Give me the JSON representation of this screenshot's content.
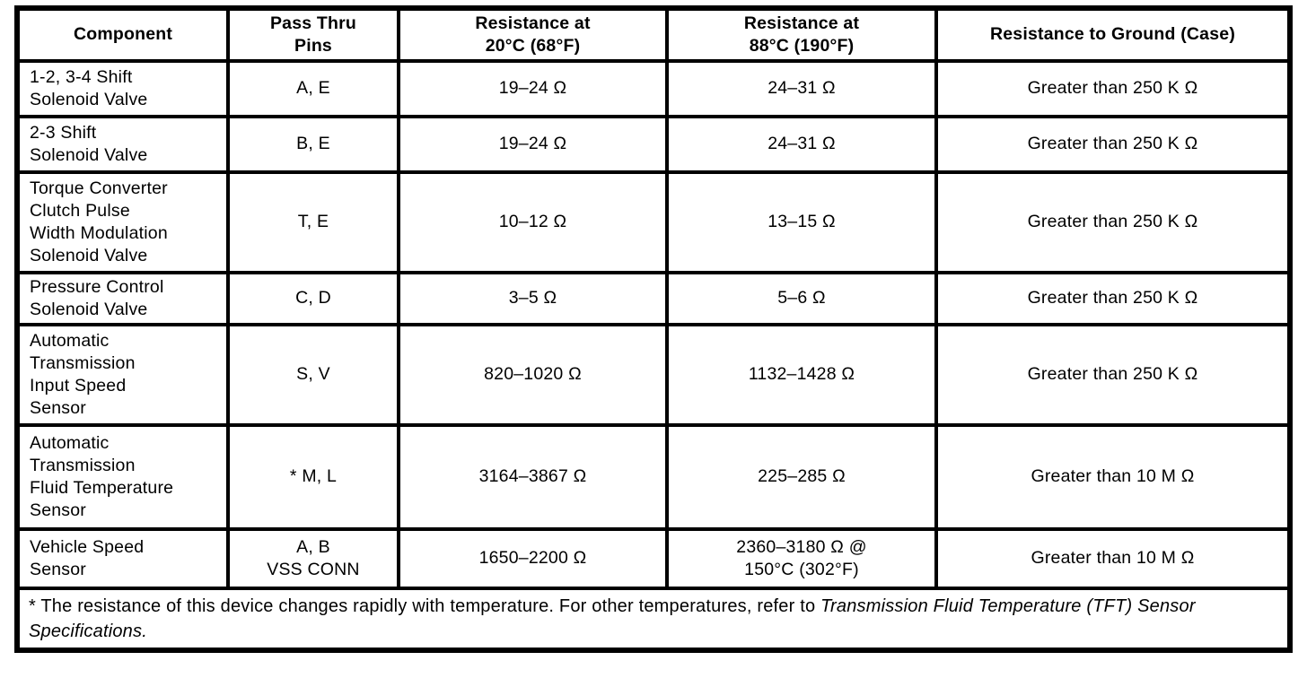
{
  "page": {
    "background_color": "#ffffff",
    "ink_color": "#000000"
  },
  "table": {
    "headers": {
      "component": "Component",
      "pass_thru_pins": "Pass Thru\nPins",
      "resistance_20": "Resistance at\n20°C (68°F)",
      "resistance_88": "Resistance at\n88°C (190°F)",
      "resistance_ground": "Resistance to Ground (Case)"
    },
    "rows": [
      {
        "component": "1-2, 3-4 Shift\nSolenoid Valve",
        "pins": "A, E",
        "r20": "19–24 Ω",
        "r88": "24–31 Ω",
        "ground": "Greater than 250 K Ω"
      },
      {
        "component": "2-3 Shift\nSolenoid Valve",
        "pins": "B, E",
        "r20": "19–24 Ω",
        "r88": "24–31 Ω",
        "ground": "Greater than 250 K Ω"
      },
      {
        "component": "Torque Converter\nClutch Pulse\nWidth Modulation\nSolenoid Valve",
        "pins": "T, E",
        "r20": "10–12 Ω",
        "r88": "13–15 Ω",
        "ground": "Greater than 250 K Ω"
      },
      {
        "component": "Pressure Control\nSolenoid Valve",
        "pins": "C, D",
        "r20": "3–5 Ω",
        "r88": "5–6 Ω",
        "ground": "Greater than 250 K Ω"
      },
      {
        "component": "Automatic\nTransmission\nInput Speed\nSensor",
        "pins": "S, V",
        "r20": "820–1020 Ω",
        "r88": "1132–1428 Ω",
        "ground": "Greater than 250 K Ω"
      },
      {
        "component": "Automatic\nTransmission\nFluid Temperature\nSensor",
        "pins": "* M, L",
        "r20": "3164–3867 Ω",
        "r88": "225–285 Ω",
        "ground": "Greater than 10 M Ω"
      },
      {
        "component": "Vehicle Speed\nSensor",
        "pins": "A, B\nVSS CONN",
        "r20": "1650–2200 Ω",
        "r88": "2360–3180 Ω @\n150°C (302°F)",
        "ground": "Greater than 10 M Ω"
      }
    ],
    "footnote": {
      "text": "* The resistance of this device changes rapidly with temperature. For other temperatures, refer to ",
      "italic_reference": "Transmission Fluid Temperature (TFT) Sensor Specifications."
    }
  }
}
